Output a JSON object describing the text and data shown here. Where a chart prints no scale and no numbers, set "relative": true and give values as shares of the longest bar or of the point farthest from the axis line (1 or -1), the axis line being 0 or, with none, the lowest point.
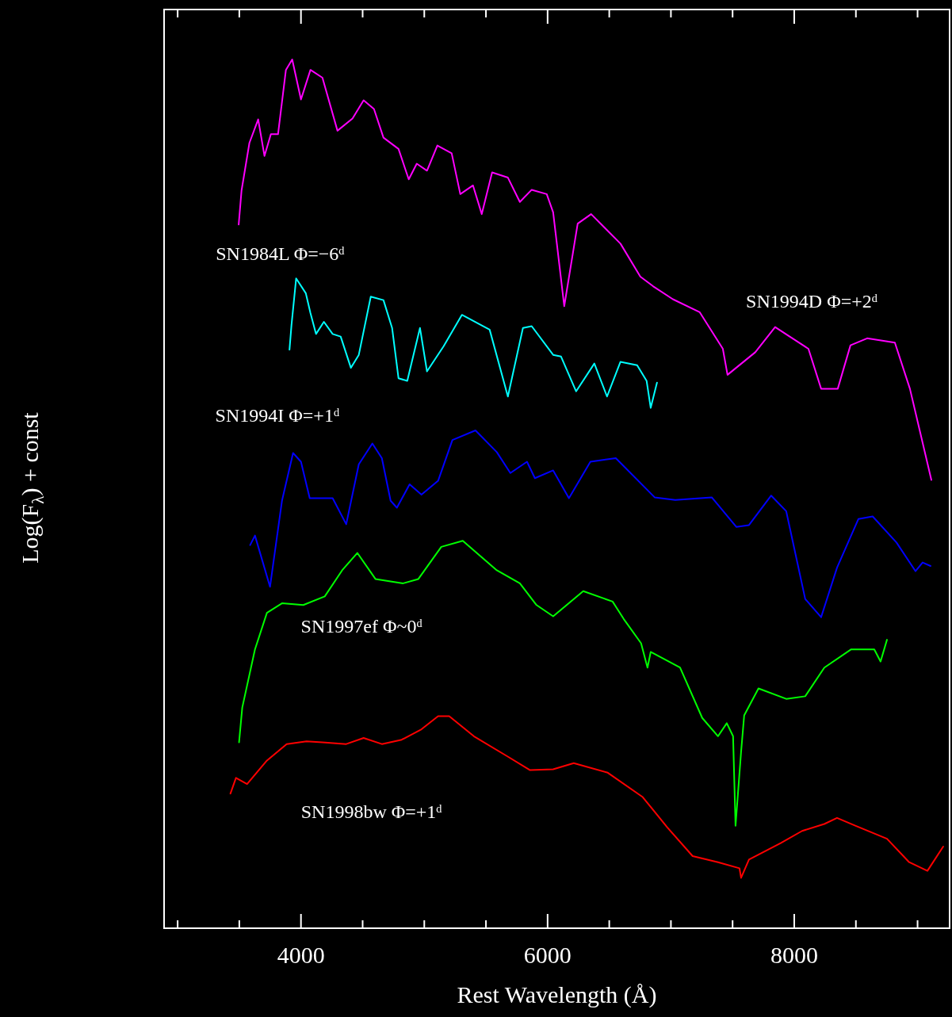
{
  "chart_data": {
    "type": "line",
    "relative": true,
    "xlabel": "Rest Wavelength (Å)",
    "ylabel": "Log(F$_{λ}$) + const",
    "xlim": [
      2890,
      9260
    ],
    "xticks": [
      {
        "value": 3000,
        "label": null
      },
      {
        "value": 3500,
        "label": null
      },
      4000,
      {
        "value": 4500,
        "label": null
      },
      {
        "value": 5000,
        "label": null
      },
      {
        "value": 5500,
        "label": null
      },
      6000,
      {
        "value": 6500,
        "label": null
      },
      {
        "value": 7000,
        "label": null
      },
      {
        "value": 7500,
        "label": null
      },
      8000,
      {
        "value": 8500,
        "label": null
      },
      {
        "value": 9000,
        "label": null
      }
    ],
    "grid": false,
    "legend": false,
    "marker": "none",
    "line_style": "solid",
    "series": [
      {
        "name": "SN1994D Φ=+2ᵈ",
        "color": "#ff00ff",
        "x": [
          3495,
          3518,
          3582,
          3653,
          3704,
          3756,
          3814,
          3878,
          3929,
          4000,
          4077,
          4174,
          4296,
          4418,
          4508,
          4592,
          4669,
          4791,
          4874,
          4939,
          5022,
          5106,
          5222,
          5292,
          5395,
          5466,
          5550,
          5678,
          5775,
          5871,
          5993,
          6045,
          6135,
          6244,
          6353,
          6591,
          6752,
          6855,
          7016,
          7234,
          7421,
          7459,
          7684,
          7845,
          8115,
          8218,
          8353,
          8456,
          8591,
          8816,
          8938,
          9112
        ],
        "values": [
          0.81,
          0.849,
          0.904,
          0.931,
          0.889,
          0.914,
          0.914,
          0.988,
          1.0,
          0.954,
          0.988,
          0.979,
          0.918,
          0.932,
          0.953,
          0.943,
          0.91,
          0.897,
          0.862,
          0.88,
          0.872,
          0.901,
          0.892,
          0.845,
          0.855,
          0.822,
          0.87,
          0.864,
          0.836,
          0.85,
          0.845,
          0.824,
          0.716,
          0.811,
          0.822,
          0.788,
          0.75,
          0.739,
          0.724,
          0.709,
          0.667,
          0.637,
          0.663,
          0.692,
          0.667,
          0.621,
          0.621,
          0.671,
          0.679,
          0.674,
          0.621,
          0.516
        ]
      },
      {
        "name": "SN1984L Φ=−6ᵈ",
        "color": "#00ffff",
        "x": [
          3907,
          3923,
          3961,
          4039,
          4077,
          4122,
          4186,
          4257,
          4322,
          4405,
          4469,
          4566,
          4669,
          4739,
          4791,
          4862,
          4965,
          5022,
          5157,
          5305,
          5530,
          5678,
          5800,
          5871,
          6045,
          6109,
          6231,
          6379,
          6482,
          6591,
          6726,
          6803,
          6836,
          6887
        ],
        "values": [
          0.666,
          0.694,
          0.748,
          0.731,
          0.708,
          0.684,
          0.698,
          0.684,
          0.681,
          0.645,
          0.66,
          0.727,
          0.723,
          0.691,
          0.633,
          0.63,
          0.691,
          0.641,
          0.67,
          0.706,
          0.689,
          0.612,
          0.691,
          0.693,
          0.66,
          0.658,
          0.618,
          0.65,
          0.612,
          0.652,
          0.648,
          0.63,
          0.599,
          0.628
        ]
      },
      {
        "name": "SN1994I Φ=+1ᵈ",
        "color": "#0000ff",
        "x": [
          3588,
          3627,
          3749,
          3846,
          3936,
          4000,
          4071,
          4257,
          4367,
          4469,
          4579,
          4656,
          4727,
          4778,
          4881,
          4977,
          5112,
          5228,
          5415,
          5588,
          5698,
          5833,
          5897,
          6045,
          6173,
          6347,
          6553,
          6868,
          7035,
          7331,
          7530,
          7633,
          7813,
          7935,
          8089,
          8218,
          8347,
          8520,
          8636,
          8829,
          8983,
          9041,
          9105
        ],
        "values": [
          0.441,
          0.452,
          0.393,
          0.492,
          0.547,
          0.537,
          0.495,
          0.495,
          0.465,
          0.534,
          0.558,
          0.541,
          0.492,
          0.484,
          0.511,
          0.499,
          0.515,
          0.562,
          0.573,
          0.548,
          0.524,
          0.537,
          0.518,
          0.527,
          0.495,
          0.537,
          0.541,
          0.496,
          0.493,
          0.496,
          0.462,
          0.464,
          0.498,
          0.48,
          0.379,
          0.358,
          0.415,
          0.471,
          0.474,
          0.444,
          0.411,
          0.421,
          0.417
        ]
      },
      {
        "name": "SN1997ef Φ~0ᵈ",
        "color": "#00ff00",
        "x": [
          3498,
          3524,
          3627,
          3724,
          3846,
          4019,
          4193,
          4334,
          4457,
          4604,
          4829,
          4952,
          5138,
          5312,
          5588,
          5775,
          5910,
          6045,
          6289,
          6527,
          6617,
          6758,
          6810,
          6836,
          7074,
          7254,
          7382,
          7453,
          7504,
          7524,
          7569,
          7594,
          7710,
          7935,
          8089,
          8244,
          8462,
          8649,
          8700,
          8752
        ],
        "values": [
          0.214,
          0.254,
          0.321,
          0.363,
          0.374,
          0.372,
          0.382,
          0.412,
          0.432,
          0.402,
          0.397,
          0.402,
          0.439,
          0.446,
          0.412,
          0.397,
          0.372,
          0.359,
          0.388,
          0.376,
          0.356,
          0.328,
          0.3,
          0.318,
          0.3,
          0.242,
          0.221,
          0.236,
          0.221,
          0.118,
          0.203,
          0.245,
          0.276,
          0.264,
          0.267,
          0.3,
          0.321,
          0.321,
          0.307,
          0.332
        ]
      },
      {
        "name": "SN1998bw Φ=+1ᵈ",
        "color": "#ff0000",
        "x": [
          3428,
          3473,
          3563,
          3724,
          3884,
          4045,
          4174,
          4367,
          4508,
          4656,
          4817,
          4977,
          5112,
          5202,
          5402,
          5672,
          5858,
          6045,
          6212,
          6488,
          6771,
          6971,
          7176,
          7382,
          7556,
          7569,
          7633,
          7890,
          8064,
          8244,
          8347,
          8495,
          8752,
          8932,
          9080,
          9208
        ],
        "values": [
          0.155,
          0.173,
          0.166,
          0.193,
          0.212,
          0.215,
          0.214,
          0.212,
          0.219,
          0.212,
          0.217,
          0.229,
          0.244,
          0.244,
          0.221,
          0.198,
          0.182,
          0.183,
          0.19,
          0.179,
          0.151,
          0.116,
          0.083,
          0.076,
          0.069,
          0.058,
          0.079,
          0.098,
          0.112,
          0.12,
          0.127,
          0.118,
          0.103,
          0.076,
          0.066,
          0.094
        ]
      }
    ]
  }
}
